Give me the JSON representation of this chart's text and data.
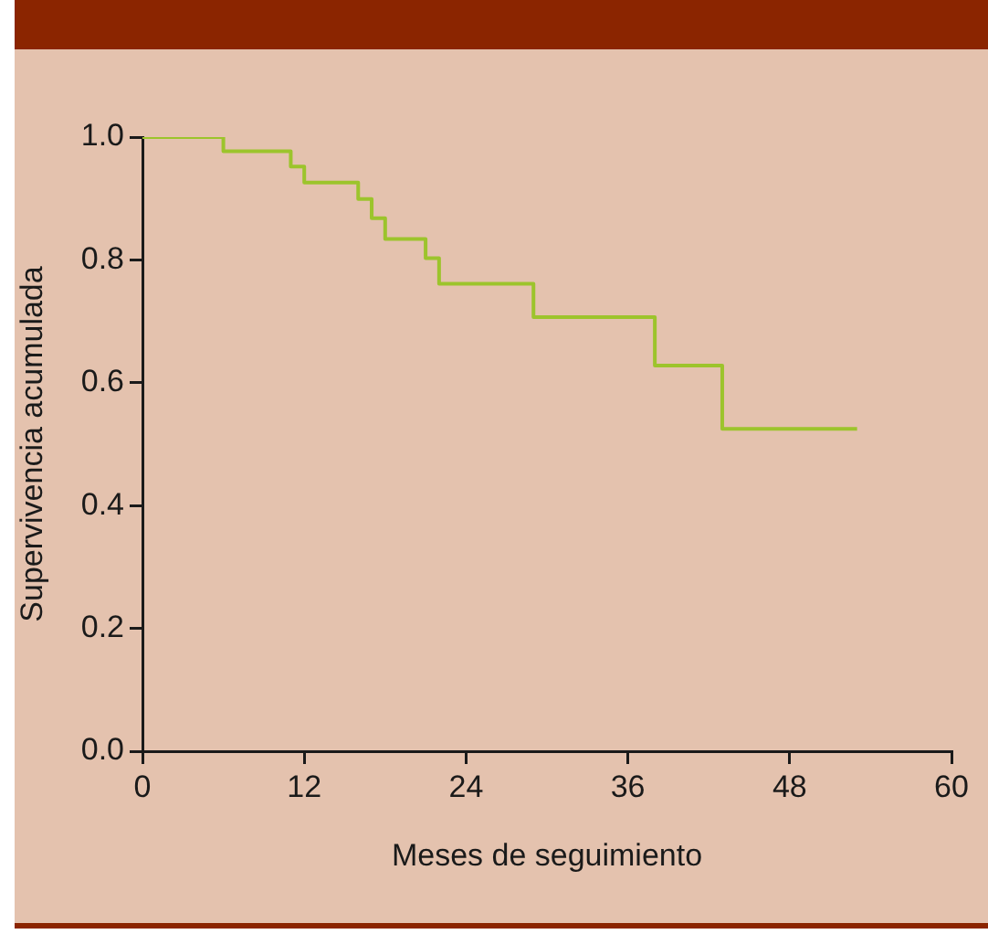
{
  "chart_data": {
    "type": "step",
    "xlabel": "Meses de seguimiento",
    "ylabel": "Supervivencia acumulada",
    "x": [
      0,
      6,
      11,
      12,
      16,
      17,
      18,
      21,
      22,
      29,
      38,
      43,
      53
    ],
    "series": [
      {
        "color": "#9cc42c",
        "values": [
          1,
          0.977,
          0.952,
          0.926,
          0.899,
          0.868,
          0.834,
          0.803,
          0.761,
          0.707,
          0.628,
          0.525,
          0.525
        ]
      }
    ],
    "xlim": [
      0,
      60
    ],
    "xticks": [
      0,
      12,
      24,
      36,
      48,
      60
    ],
    "ylim": [
      0,
      1
    ],
    "yticks": [
      {
        "value": 0,
        "label": "0.0"
      },
      {
        "value": 0.2,
        "label": "0.2"
      },
      {
        "value": 0.4,
        "label": "0.4"
      },
      {
        "value": 0.6,
        "label": "0.6"
      },
      {
        "value": 0.8,
        "label": "0.8"
      },
      {
        "value": 1,
        "label": "1.0"
      }
    ]
  }
}
